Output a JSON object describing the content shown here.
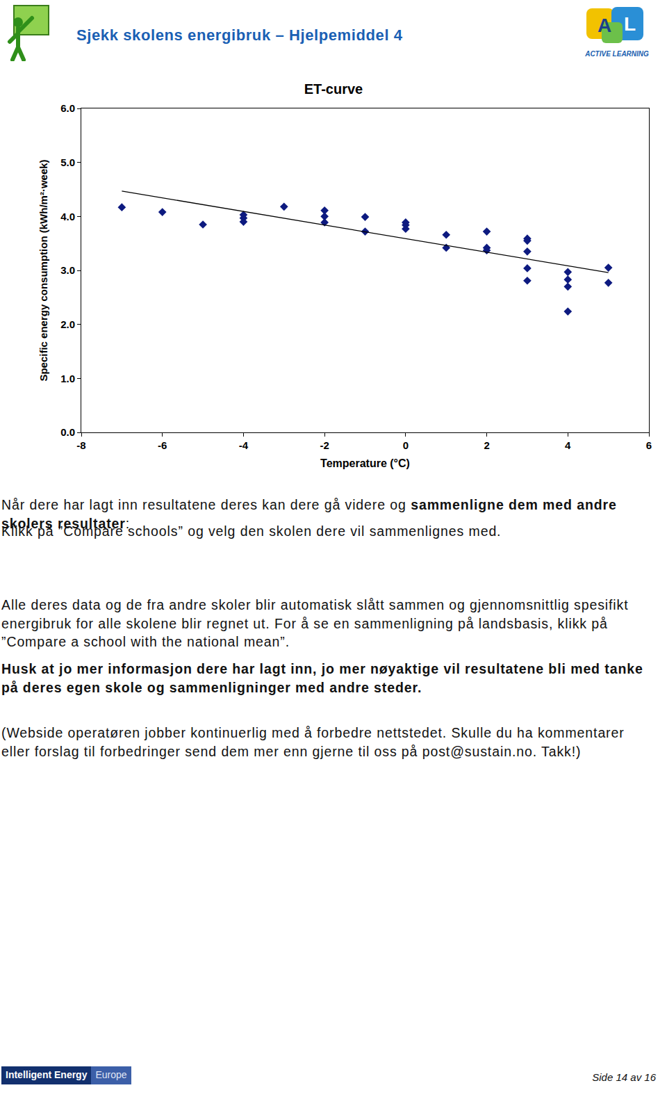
{
  "header": {
    "title": "Sjekk skolens energibruk – Hjelpemiddel 4",
    "logo_text": "ACTIVE LEARNING"
  },
  "chart_data": {
    "type": "scatter",
    "title": "ET-curve",
    "x_label": "Temperature (°C)",
    "y_label": "Specific energy consumption (kWh/m²·week)",
    "xlim": [
      -8,
      6
    ],
    "xticks": [
      -8,
      -6,
      -4,
      -2,
      0,
      2,
      4,
      6
    ],
    "ylim": [
      0,
      6
    ],
    "yticks": [
      {
        "value": 0,
        "label": "0.0"
      },
      {
        "value": 1,
        "label": "1.0"
      },
      {
        "value": 2,
        "label": "2.0"
      },
      {
        "value": 3,
        "label": "3.0"
      },
      {
        "value": 4,
        "label": "4.0"
      },
      {
        "value": 5,
        "label": "5.0"
      },
      {
        "value": 6,
        "label": "6.0"
      }
    ],
    "grid": false,
    "series": [
      {
        "type": "scatter",
        "marker": "diamond",
        "color": "#0d1a80",
        "x": [
          -7,
          -6,
          -5,
          -4,
          -4,
          -4,
          -3,
          -2,
          -2,
          -2,
          -1,
          -1,
          0,
          0,
          0,
          1,
          1,
          2,
          2,
          2,
          3,
          3,
          3,
          3,
          3,
          4,
          4,
          4,
          4,
          5,
          5
        ],
        "values": [
          4.17,
          4.08,
          3.85,
          4.03,
          3.97,
          3.9,
          4.18,
          4.11,
          4.0,
          3.89,
          3.99,
          3.72,
          3.89,
          3.84,
          3.77,
          3.66,
          3.42,
          3.72,
          3.42,
          3.37,
          3.59,
          3.55,
          3.35,
          3.04,
          2.81,
          2.97,
          2.83,
          2.7,
          2.24,
          3.05,
          2.77
        ]
      },
      {
        "type": "line",
        "line_style": "solid",
        "color": "#000000",
        "x": [
          -7,
          5
        ],
        "values": [
          4.47,
          2.96
        ]
      }
    ]
  },
  "paragraphs": [
    [
      {
        "text": "Når dere har lagt inn resultatene deres kan dere gå videre og ",
        "bold": false
      },
      {
        "text": "sammenligne dem med andre skolers resultater",
        "bold": true
      },
      {
        "text": ":",
        "bold": false
      }
    ],
    [
      {
        "text": "Klikk på ”Compare schools” og velg den skolen dere vil sammenlignes med.",
        "bold": false
      }
    ],
    [
      {
        "text": "Alle deres data og de fra andre skoler blir automatisk slått sammen og gjennomsnittlig spesifikt energibruk for alle skolene blir regnet ut. For å se en sammenligning på landsbasis, klikk på ”Compare a school with the national mean”.",
        "bold": false
      }
    ],
    [
      {
        "text": "Husk at jo mer informasjon dere har lagt inn, jo mer nøyaktige vil resultatene bli med tanke på deres egen skole og sammenligninger med andre steder.",
        "bold": true
      }
    ],
    [
      {
        "text": "(Webside operatøren jobber kontinuerlig med å forbedre nettstedet. Skulle du ha kommentarer eller forslag til forbedringer send dem mer enn gjerne til oss på post@sustain.no. Takk!)",
        "bold": false
      }
    ]
  ],
  "footer": {
    "logo": [
      "Intelligent Energy",
      "Europe"
    ],
    "page": "Side 14 av 16"
  }
}
